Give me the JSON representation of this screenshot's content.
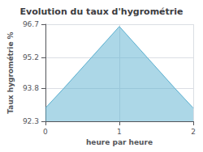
{
  "chart_data": {
    "type": "area",
    "title": "Evolution du taux d'hygrométrie",
    "xlabel": "heure par heure",
    "ylabel": "Taux hygrométrie %",
    "x": [
      0,
      0.25,
      1.0,
      1.75,
      2.0
    ],
    "values": [
      92.9,
      93.8,
      96.6,
      93.8,
      92.9
    ],
    "color": "#5aafcf",
    "xlim": [
      0,
      2
    ],
    "xticks": [
      0,
      1,
      2
    ],
    "ylim": [
      92.3,
      96.7
    ],
    "yticks": [
      92.3,
      93.8,
      95.2,
      96.7
    ],
    "grid": true
  }
}
